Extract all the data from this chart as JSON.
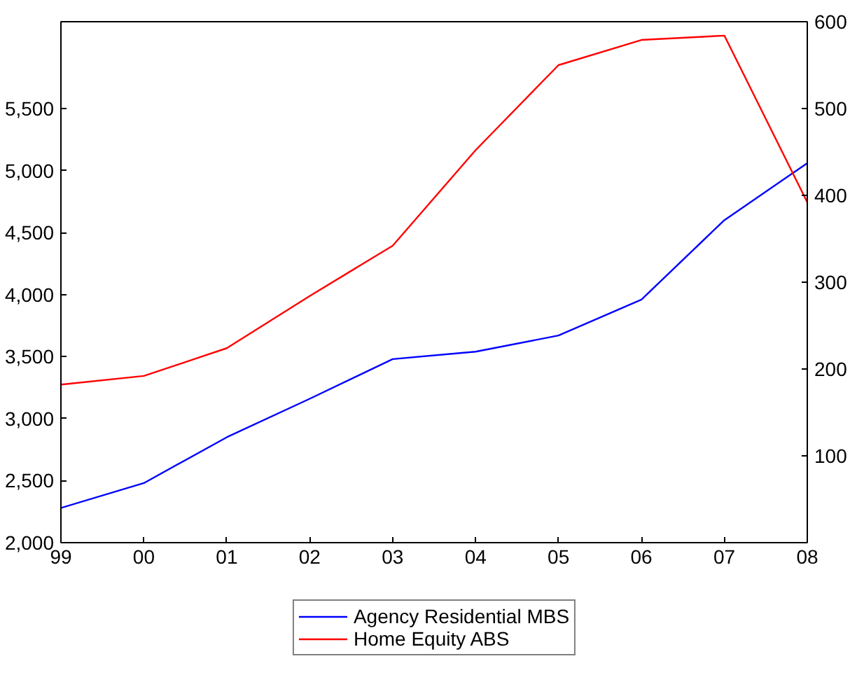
{
  "chart_data": {
    "type": "line",
    "x": [
      1999,
      2000,
      2001,
      2002,
      2003,
      2004,
      2005,
      2006,
      2007,
      2008
    ],
    "series": [
      {
        "name": "Agency Residential MBS",
        "color": "#0000ff",
        "values": [
          2280,
          2480,
          2850,
          3160,
          3480,
          3540,
          3670,
          3960,
          4600,
          5060
        ]
      },
      {
        "name": "Home Equity ABS",
        "color": "#ff0000",
        "axis": "y2",
        "values": [
          182,
          192,
          224,
          284,
          342,
          452,
          550,
          579,
          584,
          392
        ]
      }
    ],
    "xlim": [
      1999,
      2008
    ],
    "xticks": [
      {
        "value": 1999,
        "label": "99"
      },
      {
        "value": 2000,
        "label": "00"
      },
      {
        "value": 2001,
        "label": "01"
      },
      {
        "value": 2002,
        "label": "02"
      },
      {
        "value": 2003,
        "label": "03"
      },
      {
        "value": 2004,
        "label": "04"
      },
      {
        "value": 2005,
        "label": "05"
      },
      {
        "value": 2006,
        "label": "06"
      },
      {
        "value": 2007,
        "label": "07"
      },
      {
        "value": 2008,
        "label": "08"
      }
    ],
    "ylim": [
      2000,
      6200
    ],
    "yticks": [
      {
        "value": 2000,
        "label": "2,000"
      },
      {
        "value": 2500,
        "label": "2,500"
      },
      {
        "value": 3000,
        "label": "3,000"
      },
      {
        "value": 3500,
        "label": "3,500"
      },
      {
        "value": 4000,
        "label": "4,000"
      },
      {
        "value": 4500,
        "label": "4,500"
      },
      {
        "value": 5000,
        "label": "5,000"
      },
      {
        "value": 5500,
        "label": "5,500"
      }
    ],
    "y2lim": [
      0,
      600
    ],
    "y2ticks": [
      100,
      200,
      300,
      400,
      500,
      600
    ],
    "grid": false,
    "legend": "bottom",
    "marker": "none",
    "line_style": "solid"
  }
}
